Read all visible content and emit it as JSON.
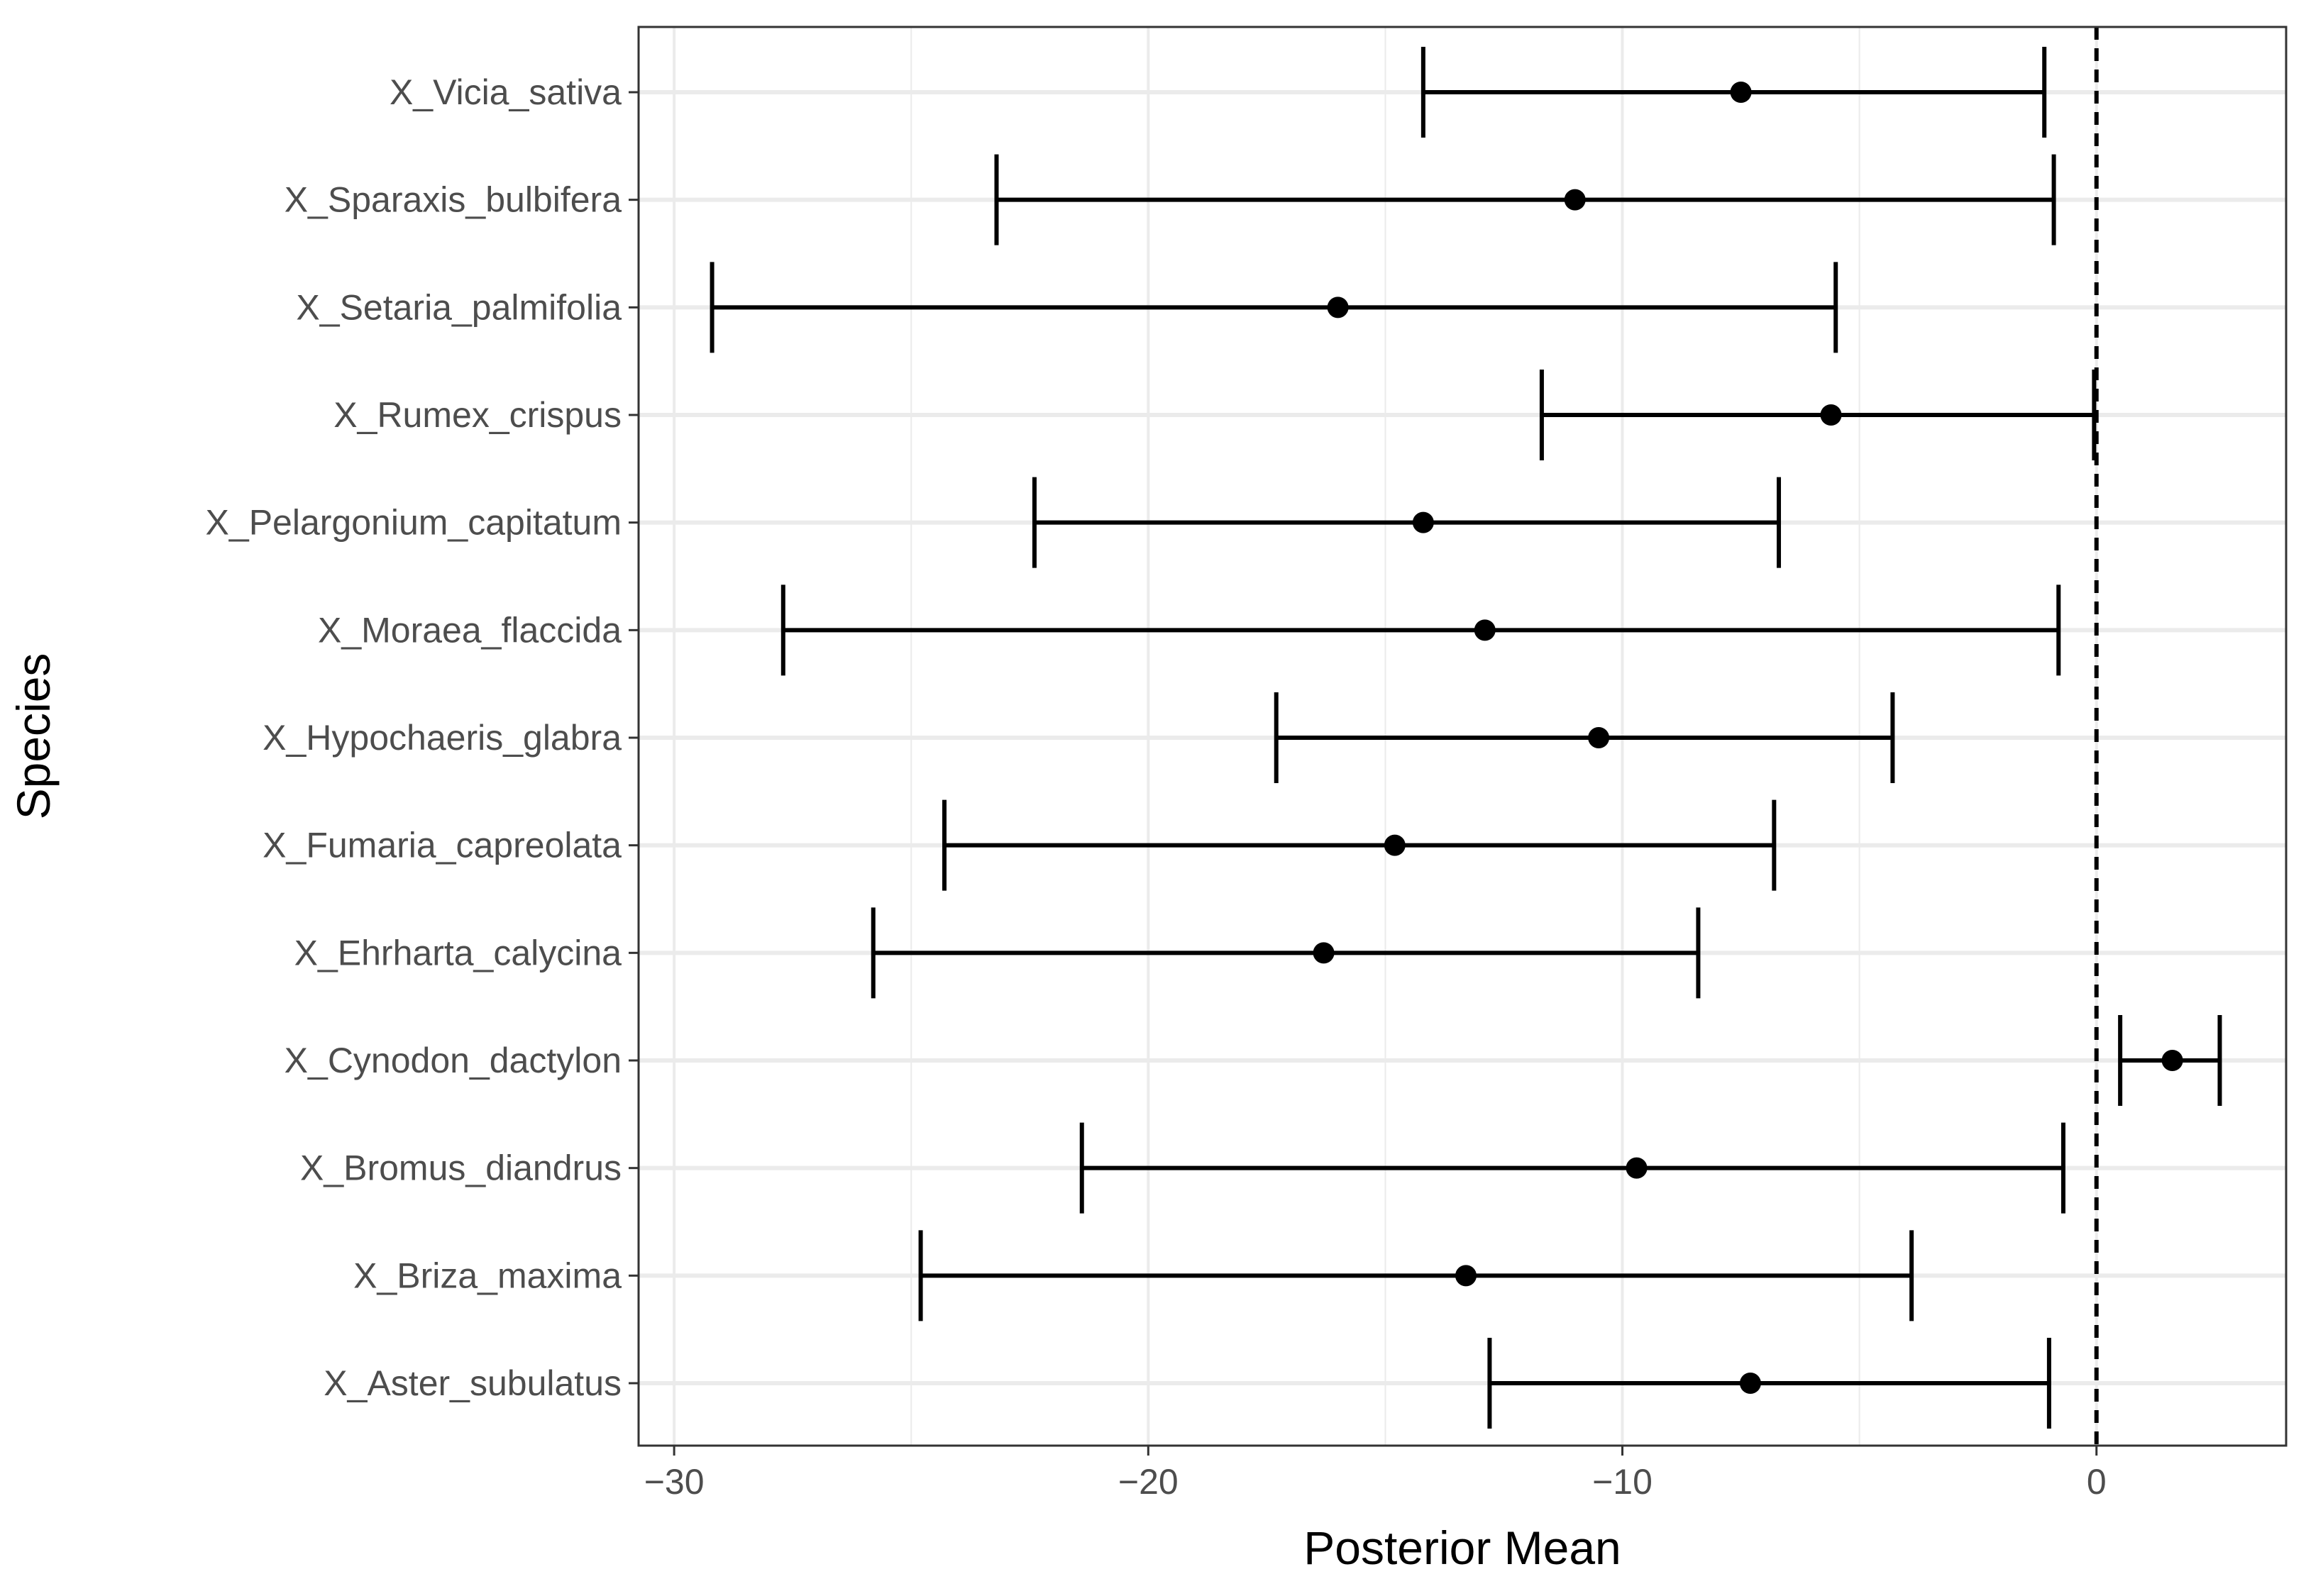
{
  "chart_data": {
    "type": "errorbar",
    "xlabel": "Posterior Mean",
    "ylabel": "Species",
    "xlim": [
      -30.75,
      4.0
    ],
    "x_ticks": [
      -30,
      -20,
      -10,
      0
    ],
    "x_tick_labels": [
      "−30",
      "−20",
      "−10",
      "0"
    ],
    "reference_line": {
      "x": 0,
      "style": "dashed"
    },
    "grid": true,
    "categories": [
      "X_Vicia_sativa",
      "X_Sparaxis_bulbifera",
      "X_Setaria_palmifolia",
      "X_Rumex_crispus",
      "X_Pelargonium_capitatum",
      "X_Moraea_flaccida",
      "X_Hypochaeris_glabra",
      "X_Fumaria_capreolata",
      "X_Ehrharta_calycina",
      "X_Cynodon_dactylon",
      "X_Bromus_diandrus",
      "X_Briza_maxima",
      "X_Aster_subulatus"
    ],
    "mean": [
      -7.5,
      -11.0,
      -16.0,
      -5.6,
      -14.2,
      -12.9,
      -10.5,
      -14.8,
      -16.3,
      1.6,
      -9.7,
      -13.3,
      -7.3
    ],
    "lower": [
      -14.2,
      -23.2,
      -29.2,
      -11.7,
      -22.4,
      -27.7,
      -17.3,
      -24.3,
      -25.8,
      0.5,
      -21.4,
      -24.8,
      -12.8
    ],
    "upper": [
      -1.1,
      -0.9,
      -5.5,
      -0.05,
      -6.7,
      -0.8,
      -4.3,
      -6.8,
      -8.4,
      2.6,
      -0.7,
      -3.9,
      -1.0
    ]
  }
}
